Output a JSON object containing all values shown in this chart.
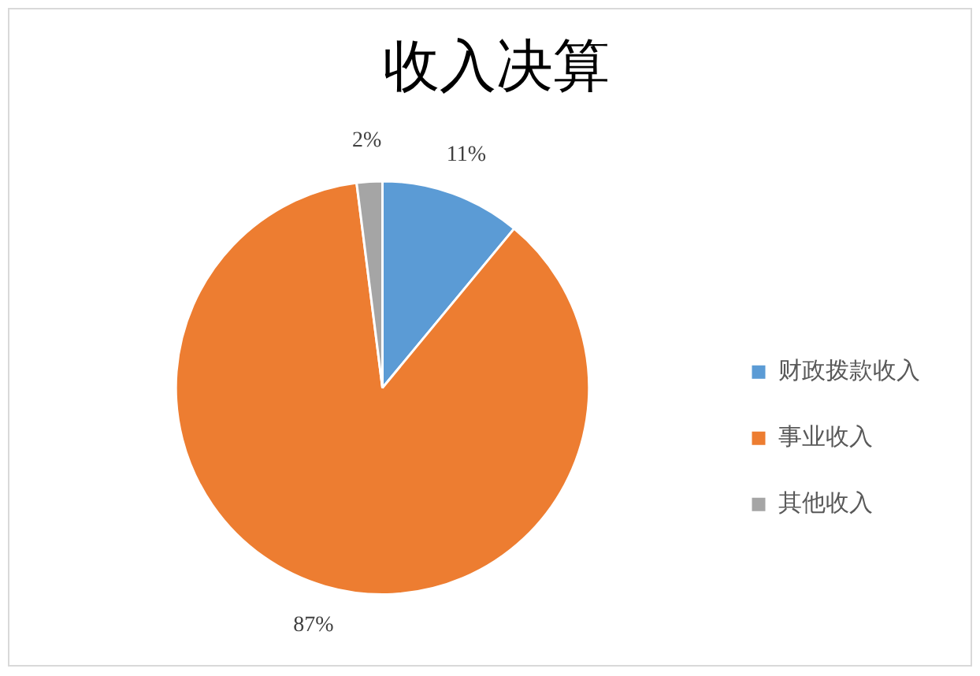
{
  "chart_data": {
    "type": "pie",
    "title": "收入决算",
    "categories": [
      "财政拨款收入",
      "事业收入",
      "其他收入"
    ],
    "values": [
      11,
      87,
      2
    ],
    "colors": [
      "#5b9bd5",
      "#ed7d31",
      "#a5a5a5"
    ],
    "value_labels": [
      "11%",
      "87%",
      "2%"
    ],
    "legend": "right"
  }
}
